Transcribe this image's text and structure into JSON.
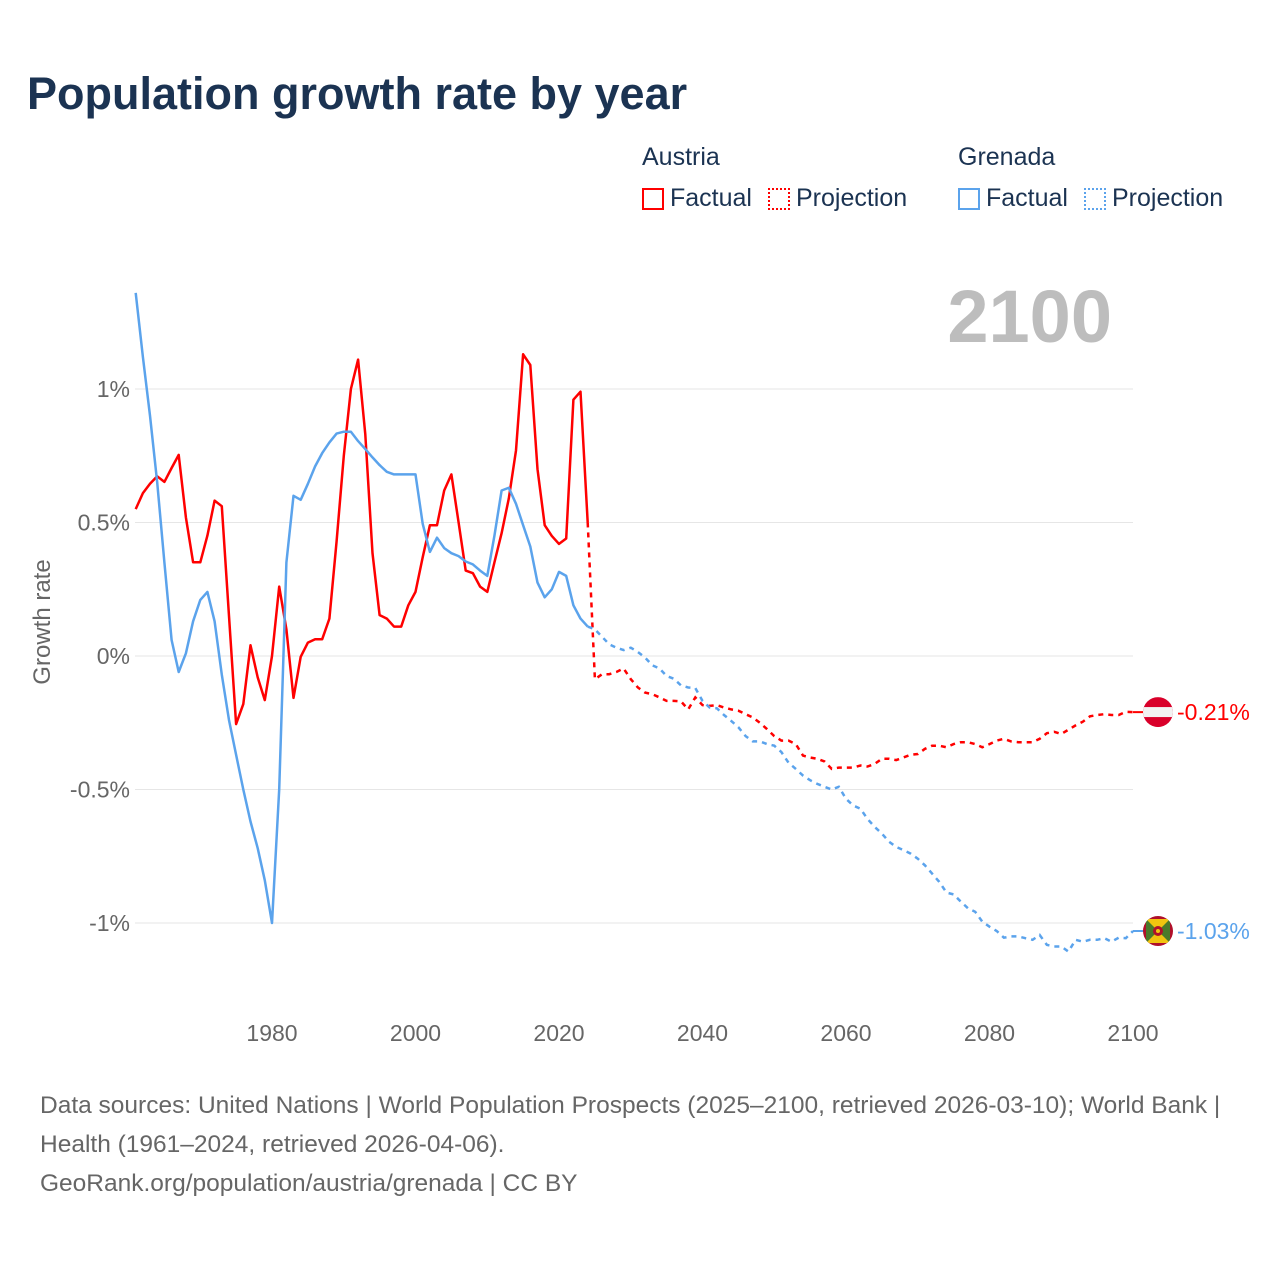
{
  "title": "Population growth rate by year",
  "legend": [
    {
      "country": "Austria",
      "color": "#ff0000",
      "factual_label": "Factual",
      "projection_label": "Projection"
    },
    {
      "country": "Grenada",
      "color": "#5ba3ec",
      "factual_label": "Factual",
      "projection_label": "Projection"
    }
  ],
  "footer": {
    "sources": "Data sources: United Nations | World Population Prospects (2025–2100, retrieved 2026-03-10); World Bank | Health (1961–2024, retrieved 2026-04-06).",
    "credit": "GeoRank.org/population/austria/grenada | CC BY"
  },
  "chart_data": {
    "type": "line",
    "title": "Population growth rate by year",
    "ylabel": "Growth rate",
    "xlabel": "",
    "current_year_label": "2100",
    "xlim": [
      1961,
      2100
    ],
    "ylim": [
      -1.2,
      1.4
    ],
    "x_ticks": [
      1980,
      2000,
      2020,
      2040,
      2060,
      2080,
      2100
    ],
    "x_tick_labels": [
      "1980",
      "2000",
      "2020",
      "2040",
      "2060",
      "2080",
      "2100"
    ],
    "y_ticks": [
      1,
      0.5,
      0,
      -0.5,
      -1
    ],
    "y_tick_labels": [
      "1%",
      "0.5%",
      "0%",
      "-0.5%",
      "-1%"
    ],
    "grid": true,
    "legend_position": "top-right",
    "series": [
      {
        "name": "Austria",
        "color": "#ff0000",
        "end_label": "-0.21%",
        "factual_start": 1961,
        "factual": [
          0.55,
          0.61,
          0.645,
          0.673,
          0.652,
          0.704,
          0.753,
          0.519,
          0.351,
          0.351,
          0.451,
          0.582,
          0.561,
          0.15,
          -0.255,
          -0.18,
          0.04,
          -0.08,
          -0.165,
          0.0,
          0.26,
          0.1,
          -0.157,
          -0.003,
          0.05,
          0.063,
          0.063,
          0.14,
          0.43,
          0.75,
          1.0,
          1.11,
          0.83,
          0.385,
          0.153,
          0.14,
          0.11,
          0.11,
          0.19,
          0.24,
          0.37,
          0.49,
          0.49,
          0.62,
          0.68,
          0.5,
          0.32,
          0.31,
          0.26,
          0.24,
          0.35,
          0.46,
          0.59,
          0.77,
          1.13,
          1.09,
          0.7,
          0.49,
          0.45,
          0.42,
          0.44,
          0.96,
          0.99,
          0.5
        ],
        "projection_start": 2025,
        "projection": [
          -0.087,
          -0.068,
          -0.068,
          -0.06,
          -0.047,
          -0.087,
          -0.118,
          -0.137,
          -0.143,
          -0.155,
          -0.168,
          -0.168,
          -0.17,
          -0.2,
          -0.155,
          -0.184,
          -0.187,
          -0.184,
          -0.193,
          -0.2,
          -0.205,
          -0.218,
          -0.23,
          -0.25,
          -0.274,
          -0.3,
          -0.317,
          -0.317,
          -0.33,
          -0.373,
          -0.38,
          -0.385,
          -0.395,
          -0.423,
          -0.418,
          -0.418,
          -0.418,
          -0.41,
          -0.414,
          -0.404,
          -0.385,
          -0.385,
          -0.39,
          -0.38,
          -0.37,
          -0.367,
          -0.348,
          -0.336,
          -0.336,
          -0.342,
          -0.33,
          -0.323,
          -0.323,
          -0.33,
          -0.342,
          -0.33,
          -0.317,
          -0.31,
          -0.32,
          -0.323,
          -0.323,
          -0.323,
          -0.31,
          -0.289,
          -0.284,
          -0.292,
          -0.276,
          -0.26,
          -0.246,
          -0.226,
          -0.221,
          -0.218,
          -0.221,
          -0.221,
          -0.209,
          -0.21
        ]
      },
      {
        "name": "Grenada",
        "color": "#5ba3ec",
        "end_label": "-1.03%",
        "factual_start": 1961,
        "factual": [
          1.36,
          1.12,
          0.9,
          0.65,
          0.35,
          0.06,
          -0.06,
          0.01,
          0.13,
          0.21,
          0.24,
          0.13,
          -0.07,
          -0.24,
          -0.37,
          -0.5,
          -0.62,
          -0.72,
          -0.84,
          -1.0,
          -0.5,
          0.35,
          0.6,
          0.585,
          0.645,
          0.71,
          0.76,
          0.8,
          0.833,
          0.84,
          0.84,
          0.805,
          0.775,
          0.744,
          0.715,
          0.69,
          0.68,
          0.68,
          0.68,
          0.68,
          0.495,
          0.39,
          0.443,
          0.404,
          0.385,
          0.374,
          0.354,
          0.343,
          0.32,
          0.3,
          0.45,
          0.62,
          0.63,
          0.57,
          0.49,
          0.41,
          0.275,
          0.22,
          0.25,
          0.315,
          0.3,
          0.19,
          0.14,
          0.11
        ],
        "projection_start": 2025,
        "projection": [
          0.1,
          0.072,
          0.044,
          0.031,
          0.022,
          0.031,
          0.015,
          -0.006,
          -0.035,
          -0.047,
          -0.075,
          -0.085,
          -0.11,
          -0.118,
          -0.12,
          -0.168,
          -0.193,
          -0.196,
          -0.221,
          -0.243,
          -0.267,
          -0.3,
          -0.32,
          -0.32,
          -0.33,
          -0.336,
          -0.36,
          -0.4,
          -0.423,
          -0.448,
          -0.465,
          -0.479,
          -0.49,
          -0.5,
          -0.49,
          -0.535,
          -0.56,
          -0.572,
          -0.61,
          -0.64,
          -0.665,
          -0.696,
          -0.715,
          -0.727,
          -0.74,
          -0.759,
          -0.784,
          -0.815,
          -0.846,
          -0.886,
          -0.893,
          -0.92,
          -0.945,
          -0.958,
          -0.995,
          -1.014,
          -1.03,
          -1.055,
          -1.05,
          -1.05,
          -1.057,
          -1.063,
          -1.045,
          -1.082,
          -1.088,
          -1.088,
          -1.107,
          -1.063,
          -1.07,
          -1.063,
          -1.063,
          -1.057,
          -1.07,
          -1.055,
          -1.057,
          -1.03
        ]
      }
    ]
  }
}
